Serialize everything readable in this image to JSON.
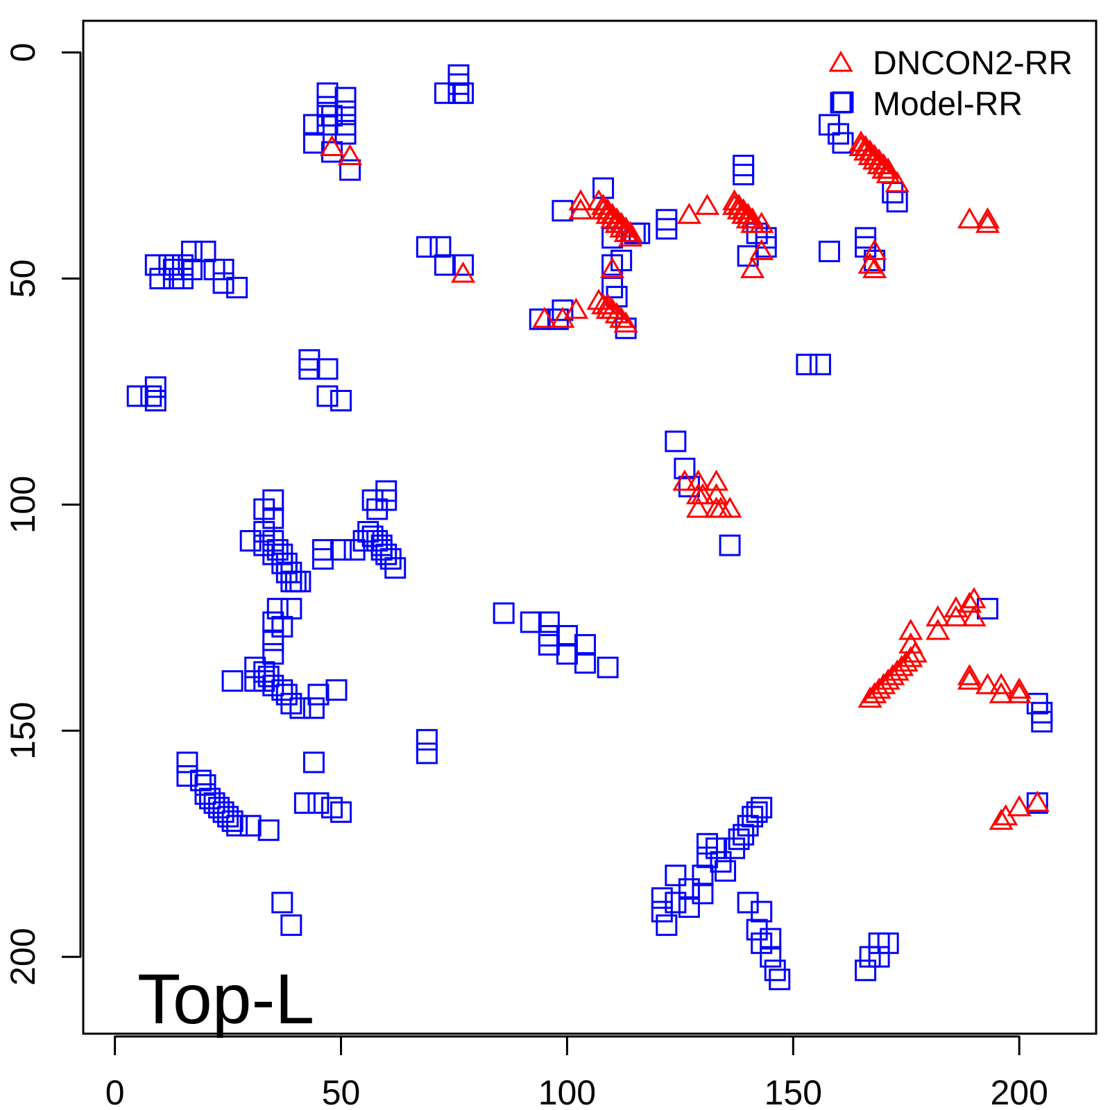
{
  "chart_data": {
    "type": "scatter",
    "title": "",
    "annotation": "Top-L",
    "xlabel": "",
    "ylabel": "",
    "xlim": [
      -7,
      217
    ],
    "ylim": [
      -7,
      217
    ],
    "y_reversed": true,
    "x_ticks": [
      0,
      50,
      100,
      150,
      200
    ],
    "y_ticks": [
      0,
      50,
      100,
      150,
      200
    ],
    "legend_position": "top-right",
    "series": [
      {
        "name": "DNCON2-RR",
        "marker": "triangle",
        "color": "#ff0000",
        "points": [
          [
            48,
            21
          ],
          [
            52,
            23
          ],
          [
            77,
            49
          ],
          [
            103,
            33
          ],
          [
            103,
            35
          ],
          [
            107,
            33
          ],
          [
            108,
            34
          ],
          [
            108,
            35
          ],
          [
            109,
            35
          ],
          [
            109,
            36
          ],
          [
            110,
            36
          ],
          [
            110,
            37
          ],
          [
            111,
            37
          ],
          [
            111,
            38
          ],
          [
            112,
            38
          ],
          [
            112,
            39
          ],
          [
            113,
            39
          ],
          [
            113,
            40
          ],
          [
            114,
            40
          ],
          [
            114,
            41
          ],
          [
            95,
            59
          ],
          [
            99,
            59
          ],
          [
            102,
            57
          ],
          [
            107,
            55
          ],
          [
            108,
            56
          ],
          [
            109,
            56
          ],
          [
            109,
            57
          ],
          [
            110,
            57
          ],
          [
            111,
            58
          ],
          [
            112,
            59
          ],
          [
            113,
            60
          ],
          [
            110,
            48
          ],
          [
            127,
            36
          ],
          [
            131,
            34
          ],
          [
            137,
            33
          ],
          [
            137,
            34
          ],
          [
            138,
            34
          ],
          [
            138,
            35
          ],
          [
            139,
            35
          ],
          [
            139,
            36
          ],
          [
            140,
            36
          ],
          [
            140,
            37
          ],
          [
            141,
            37
          ],
          [
            141,
            38
          ],
          [
            143,
            38
          ],
          [
            141,
            48
          ],
          [
            143,
            44
          ],
          [
            165,
            20
          ],
          [
            165,
            21
          ],
          [
            166,
            21
          ],
          [
            166,
            22
          ],
          [
            167,
            22
          ],
          [
            167,
            23
          ],
          [
            168,
            23
          ],
          [
            168,
            24
          ],
          [
            169,
            24
          ],
          [
            169,
            25
          ],
          [
            170,
            25
          ],
          [
            170,
            26
          ],
          [
            171,
            26
          ],
          [
            171,
            27
          ],
          [
            173,
            29
          ],
          [
            167,
            47
          ],
          [
            168,
            44
          ],
          [
            168,
            48
          ],
          [
            189,
            37
          ],
          [
            193,
            37
          ],
          [
            193,
            38
          ],
          [
            126,
            95
          ],
          [
            129,
            95
          ],
          [
            129,
            98
          ],
          [
            129,
            101
          ],
          [
            130,
            98
          ],
          [
            133,
            95
          ],
          [
            133,
            98
          ],
          [
            133,
            101
          ],
          [
            134,
            101
          ],
          [
            136,
            101
          ],
          [
            167,
            143
          ],
          [
            168,
            142
          ],
          [
            169,
            141
          ],
          [
            170,
            140
          ],
          [
            171,
            139
          ],
          [
            172,
            138
          ],
          [
            173,
            137
          ],
          [
            174,
            136
          ],
          [
            175,
            135
          ],
          [
            176,
            134
          ],
          [
            177,
            133
          ],
          [
            176,
            128
          ],
          [
            176,
            131
          ],
          [
            182,
            125
          ],
          [
            182,
            128
          ],
          [
            186,
            123
          ],
          [
            186,
            125
          ],
          [
            189,
            122
          ],
          [
            190,
            121
          ],
          [
            190,
            125
          ],
          [
            189,
            138
          ],
          [
            189,
            139
          ],
          [
            193,
            140
          ],
          [
            196,
            140
          ],
          [
            196,
            142
          ],
          [
            200,
            141
          ],
          [
            200,
            142
          ],
          [
            196,
            170
          ],
          [
            197,
            169
          ],
          [
            200,
            167
          ],
          [
            204,
            166
          ]
        ]
      },
      {
        "name": "Model-RR",
        "marker": "square",
        "color": "#0000ff",
        "points": [
          [
            76,
            5
          ],
          [
            76,
            7
          ],
          [
            73,
            9
          ],
          [
            76,
            9
          ],
          [
            77,
            9
          ],
          [
            47,
            9
          ],
          [
            47,
            12
          ],
          [
            47,
            14
          ],
          [
            47,
            16
          ],
          [
            48,
            14
          ],
          [
            51,
            10
          ],
          [
            51,
            13
          ],
          [
            51,
            16
          ],
          [
            51,
            18
          ],
          [
            44,
            16
          ],
          [
            44,
            20
          ],
          [
            48,
            22
          ],
          [
            52,
            26
          ],
          [
            9,
            47
          ],
          [
            10,
            50
          ],
          [
            12,
            47
          ],
          [
            13,
            50
          ],
          [
            13,
            48
          ],
          [
            15,
            47
          ],
          [
            15,
            50
          ],
          [
            17,
            44
          ],
          [
            17,
            48
          ],
          [
            20,
            44
          ],
          [
            22,
            48
          ],
          [
            24,
            48
          ],
          [
            24,
            51
          ],
          [
            27,
            52
          ],
          [
            5,
            76
          ],
          [
            8,
            76
          ],
          [
            9,
            74
          ],
          [
            9,
            77
          ],
          [
            43,
            68
          ],
          [
            43,
            70
          ],
          [
            47,
            70
          ],
          [
            47,
            76
          ],
          [
            50,
            77
          ],
          [
            69,
            43
          ],
          [
            72,
            43
          ],
          [
            73,
            47
          ],
          [
            77,
            47
          ],
          [
            99,
            35
          ],
          [
            108,
            30
          ],
          [
            110,
            41
          ],
          [
            115,
            40
          ],
          [
            116,
            40
          ],
          [
            110,
            47
          ],
          [
            112,
            46
          ],
          [
            110,
            52
          ],
          [
            111,
            54
          ],
          [
            99,
            57
          ],
          [
            94,
            59
          ],
          [
            98,
            59
          ],
          [
            113,
            61
          ],
          [
            158,
            44
          ],
          [
            122,
            37
          ],
          [
            122,
            39
          ],
          [
            139,
            25
          ],
          [
            139,
            27
          ],
          [
            142,
            40
          ],
          [
            144,
            41
          ],
          [
            144,
            43
          ],
          [
            140,
            45
          ],
          [
            158,
            16
          ],
          [
            160,
            18
          ],
          [
            161,
            20
          ],
          [
            161,
            11
          ],
          [
            172,
            31
          ],
          [
            173,
            33
          ],
          [
            166,
            41
          ],
          [
            166,
            43
          ],
          [
            168,
            46
          ],
          [
            153,
            69
          ],
          [
            156,
            69
          ],
          [
            124,
            86
          ],
          [
            126,
            92
          ],
          [
            127,
            96
          ],
          [
            136,
            109
          ],
          [
            33,
            101
          ],
          [
            35,
            99
          ],
          [
            35,
            103
          ],
          [
            30,
            108
          ],
          [
            33,
            106
          ],
          [
            33,
            109
          ],
          [
            35,
            108
          ],
          [
            35,
            111
          ],
          [
            36,
            110
          ],
          [
            37,
            111
          ],
          [
            37,
            113
          ],
          [
            38,
            113
          ],
          [
            38,
            115
          ],
          [
            39,
            115
          ],
          [
            39,
            117
          ],
          [
            40,
            117
          ],
          [
            41,
            117
          ],
          [
            46,
            110
          ],
          [
            46,
            112
          ],
          [
            50,
            110
          ],
          [
            53,
            110
          ],
          [
            55,
            108
          ],
          [
            56,
            106
          ],
          [
            57,
            107
          ],
          [
            58,
            108
          ],
          [
            59,
            109
          ],
          [
            59,
            110
          ],
          [
            60,
            111
          ],
          [
            61,
            112
          ],
          [
            62,
            114
          ],
          [
            57,
            99
          ],
          [
            58,
            101
          ],
          [
            60,
            97
          ],
          [
            60,
            99
          ],
          [
            86,
            124
          ],
          [
            92,
            126
          ],
          [
            96,
            126
          ],
          [
            96,
            129
          ],
          [
            96,
            131
          ],
          [
            100,
            129
          ],
          [
            100,
            133
          ],
          [
            104,
            131
          ],
          [
            104,
            135
          ],
          [
            109,
            136
          ],
          [
            36,
            123
          ],
          [
            39,
            123
          ],
          [
            35,
            126
          ],
          [
            37,
            127
          ],
          [
            35,
            130
          ],
          [
            35,
            133
          ],
          [
            33,
            137
          ],
          [
            34,
            138
          ],
          [
            35,
            140
          ],
          [
            37,
            141
          ],
          [
            38,
            142
          ],
          [
            39,
            144
          ],
          [
            41,
            145
          ],
          [
            44,
            145
          ],
          [
            45,
            142
          ],
          [
            49,
            141
          ],
          [
            26,
            139
          ],
          [
            31,
            139
          ],
          [
            31,
            136
          ],
          [
            33,
            139
          ],
          [
            16,
            157
          ],
          [
            16,
            160
          ],
          [
            19,
            161
          ],
          [
            20,
            162
          ],
          [
            20,
            164
          ],
          [
            21,
            165
          ],
          [
            22,
            166
          ],
          [
            23,
            167
          ],
          [
            24,
            168
          ],
          [
            25,
            169
          ],
          [
            26,
            170
          ],
          [
            27,
            171
          ],
          [
            30,
            171
          ],
          [
            34,
            172
          ],
          [
            44,
            157
          ],
          [
            42,
            166
          ],
          [
            45,
            166
          ],
          [
            48,
            167
          ],
          [
            50,
            168
          ],
          [
            69,
            152
          ],
          [
            69,
            155
          ],
          [
            37,
            188
          ],
          [
            39,
            193
          ],
          [
            121,
            187
          ],
          [
            121,
            190
          ],
          [
            122,
            193
          ],
          [
            124,
            182
          ],
          [
            124,
            188
          ],
          [
            127,
            185
          ],
          [
            127,
            189
          ],
          [
            130,
            182
          ],
          [
            130,
            186
          ],
          [
            131,
            175
          ],
          [
            131,
            178
          ],
          [
            133,
            176
          ],
          [
            134,
            179
          ],
          [
            135,
            181
          ],
          [
            137,
            176
          ],
          [
            138,
            174
          ],
          [
            139,
            173
          ],
          [
            140,
            171
          ],
          [
            141,
            169
          ],
          [
            142,
            168
          ],
          [
            143,
            167
          ],
          [
            140,
            188
          ],
          [
            143,
            190
          ],
          [
            142,
            194
          ],
          [
            143,
            197
          ],
          [
            145,
            196
          ],
          [
            145,
            200
          ],
          [
            146,
            203
          ],
          [
            147,
            205
          ],
          [
            166,
            203
          ],
          [
            167,
            200
          ],
          [
            169,
            200
          ],
          [
            169,
            197
          ],
          [
            171,
            197
          ],
          [
            205,
            146
          ],
          [
            205,
            148
          ],
          [
            204,
            166
          ],
          [
            204,
            144
          ],
          [
            193,
            123
          ]
        ]
      }
    ]
  }
}
